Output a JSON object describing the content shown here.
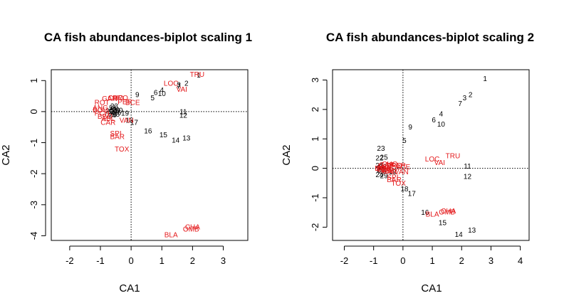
{
  "chart_data": [
    {
      "type": "scatter",
      "title": "CA fish abundances-biplot scaling 1",
      "xlabel": "CA1",
      "ylabel": "CA2",
      "xlim": [
        -2.6,
        3.8
      ],
      "ylim": [
        -4.15,
        1.35
      ],
      "xticks": [
        -2,
        -1,
        0,
        1,
        2,
        3
      ],
      "yticks": [
        -4,
        -3,
        -2,
        -1,
        0,
        1
      ],
      "reference_lines": {
        "x": 0,
        "y": 0
      },
      "series": [
        {
          "name": "sites",
          "color": "#000000",
          "points": [
            {
              "label": "1",
              "x": 2.2,
              "y": 1.18
            },
            {
              "label": "2",
              "x": 1.8,
              "y": 0.92
            },
            {
              "label": "3",
              "x": 1.55,
              "y": 0.87
            },
            {
              "label": "4",
              "x": 1.0,
              "y": 0.7
            },
            {
              "label": "5",
              "x": 0.7,
              "y": 0.45
            },
            {
              "label": "6",
              "x": 0.8,
              "y": 0.62
            },
            {
              "label": "7",
              "x": 1.55,
              "y": 0.82
            },
            {
              "label": "9",
              "x": 0.2,
              "y": 0.55
            },
            {
              "label": "10",
              "x": 1.0,
              "y": 0.58
            },
            {
              "label": "11",
              "x": 1.7,
              "y": 0.0
            },
            {
              "label": "12",
              "x": 1.7,
              "y": -0.12
            },
            {
              "label": "13",
              "x": 1.8,
              "y": -0.85
            },
            {
              "label": "14",
              "x": 1.45,
              "y": -0.92
            },
            {
              "label": "15",
              "x": 1.05,
              "y": -0.75
            },
            {
              "label": "16",
              "x": 0.55,
              "y": -0.62
            },
            {
              "label": "17",
              "x": 0.1,
              "y": -0.35
            },
            {
              "label": "18",
              "x": -0.05,
              "y": -0.28
            },
            {
              "label": "19",
              "x": -0.2,
              "y": -0.05
            },
            {
              "label": "20",
              "x": -0.5,
              "y": 0.05
            },
            {
              "label": "21",
              "x": -0.6,
              "y": 0.12
            },
            {
              "label": "22",
              "x": -0.7,
              "y": 0.02
            },
            {
              "label": "23",
              "x": -0.55,
              "y": 0.18
            },
            {
              "label": "24",
              "x": -0.65,
              "y": -0.05
            },
            {
              "label": "25",
              "x": -0.6,
              "y": 0.08
            },
            {
              "label": "26",
              "x": -0.45,
              "y": -0.02
            },
            {
              "label": "27",
              "x": -0.55,
              "y": 0.0
            },
            {
              "label": "28",
              "x": -0.5,
              "y": -0.08
            },
            {
              "label": "29",
              "x": -0.6,
              "y": -0.1
            },
            {
              "label": "30",
              "x": -0.4,
              "y": 0.04
            }
          ]
        },
        {
          "name": "species",
          "color": "#e41a1c",
          "points": [
            {
              "label": "TRU",
              "x": 2.15,
              "y": 1.2
            },
            {
              "label": "LOC",
              "x": 1.3,
              "y": 0.92
            },
            {
              "label": "VAI",
              "x": 1.65,
              "y": 0.72
            },
            {
              "label": "CHO",
              "x": -0.5,
              "y": 0.45
            },
            {
              "label": "BRO",
              "x": -0.35,
              "y": 0.45
            },
            {
              "label": "GAR",
              "x": -0.7,
              "y": 0.42
            },
            {
              "label": "PER",
              "x": -0.2,
              "y": 0.32
            },
            {
              "label": "BCE",
              "x": 0.05,
              "y": 0.3
            },
            {
              "label": "ROT",
              "x": -0.95,
              "y": 0.3
            },
            {
              "label": "BOU",
              "x": -1.0,
              "y": 0.05
            },
            {
              "label": "PCH",
              "x": -0.95,
              "y": -0.05
            },
            {
              "label": "BBO",
              "x": -0.85,
              "y": -0.15
            },
            {
              "label": "ABL",
              "x": -0.75,
              "y": -0.22
            },
            {
              "label": "ANG",
              "x": -1.0,
              "y": 0.12
            },
            {
              "label": "CAR",
              "x": -0.75,
              "y": -0.35
            },
            {
              "label": "VAN",
              "x": -0.15,
              "y": -0.28
            },
            {
              "label": "SPI",
              "x": -0.5,
              "y": -0.7
            },
            {
              "label": "BAR",
              "x": -0.45,
              "y": -0.8
            },
            {
              "label": "TOX",
              "x": -0.3,
              "y": -1.2
            },
            {
              "label": "CHA",
              "x": 2.0,
              "y": -3.72
            },
            {
              "label": "OMB",
              "x": 1.95,
              "y": -3.78
            },
            {
              "label": "BLA",
              "x": 1.3,
              "y": -3.97
            }
          ]
        }
      ]
    },
    {
      "type": "scatter",
      "title": "CA fish abundances-biplot scaling 2",
      "xlabel": "CA1",
      "ylabel": "CA2",
      "xlim": [
        -2.4,
        4.3
      ],
      "ylim": [
        -2.45,
        3.35
      ],
      "xticks": [
        -2,
        -1,
        0,
        1,
        2,
        3,
        4
      ],
      "yticks": [
        -2,
        -1,
        0,
        1,
        2,
        3
      ],
      "reference_lines": {
        "x": 0,
        "y": 0
      },
      "series": [
        {
          "name": "sites",
          "color": "#000000",
          "points": [
            {
              "label": "1",
              "x": 2.8,
              "y": 3.05
            },
            {
              "label": "2",
              "x": 2.3,
              "y": 2.5
            },
            {
              "label": "3",
              "x": 2.1,
              "y": 2.4
            },
            {
              "label": "4",
              "x": 1.3,
              "y": 1.85
            },
            {
              "label": "5",
              "x": 0.05,
              "y": 0.95
            },
            {
              "label": "6",
              "x": 1.05,
              "y": 1.65
            },
            {
              "label": "7",
              "x": 1.95,
              "y": 2.2
            },
            {
              "label": "9",
              "x": 0.25,
              "y": 1.4
            },
            {
              "label": "10",
              "x": 1.3,
              "y": 1.5
            },
            {
              "label": "11",
              "x": 2.2,
              "y": 0.08
            },
            {
              "label": "12",
              "x": 2.2,
              "y": -0.28
            },
            {
              "label": "13",
              "x": 2.35,
              "y": -2.1
            },
            {
              "label": "14",
              "x": 1.9,
              "y": -2.25
            },
            {
              "label": "15",
              "x": 1.35,
              "y": -1.85
            },
            {
              "label": "16",
              "x": 0.75,
              "y": -1.5
            },
            {
              "label": "17",
              "x": 0.3,
              "y": -0.85
            },
            {
              "label": "18",
              "x": 0.05,
              "y": -0.7
            },
            {
              "label": "19",
              "x": -0.35,
              "y": -0.12
            },
            {
              "label": "20",
              "x": -0.75,
              "y": 0.02
            },
            {
              "label": "21",
              "x": -0.75,
              "y": -0.05
            },
            {
              "label": "22",
              "x": -0.8,
              "y": 0.35
            },
            {
              "label": "23",
              "x": -0.75,
              "y": 0.68
            },
            {
              "label": "24",
              "x": -0.8,
              "y": -0.22
            },
            {
              "label": "25",
              "x": -0.65,
              "y": 0.38
            },
            {
              "label": "26",
              "x": -0.7,
              "y": -0.08
            },
            {
              "label": "27",
              "x": -0.8,
              "y": 0.1
            },
            {
              "label": "28",
              "x": -0.7,
              "y": 0.05
            },
            {
              "label": "29",
              "x": -0.65,
              "y": -0.25
            },
            {
              "label": "30",
              "x": -0.75,
              "y": 0.0
            }
          ]
        },
        {
          "name": "species",
          "color": "#e41a1c",
          "points": [
            {
              "label": "TRU",
              "x": 1.7,
              "y": 0.42
            },
            {
              "label": "LOC",
              "x": 1.0,
              "y": 0.32
            },
            {
              "label": "VAI",
              "x": 1.25,
              "y": 0.2
            },
            {
              "label": "CHO",
              "x": -0.45,
              "y": 0.15
            },
            {
              "label": "BRO",
              "x": -0.3,
              "y": 0.1
            },
            {
              "label": "GAR",
              "x": -0.55,
              "y": 0.12
            },
            {
              "label": "PER",
              "x": -0.15,
              "y": 0.1
            },
            {
              "label": "BCE",
              "x": 0.0,
              "y": 0.05
            },
            {
              "label": "ROT",
              "x": -0.6,
              "y": 0.08
            },
            {
              "label": "BOU",
              "x": -0.7,
              "y": 0.0
            },
            {
              "label": "PCH",
              "x": -0.65,
              "y": -0.02
            },
            {
              "label": "BBO",
              "x": -0.6,
              "y": -0.05
            },
            {
              "label": "ABL",
              "x": -0.5,
              "y": -0.08
            },
            {
              "label": "ANG",
              "x": -0.55,
              "y": 0.0
            },
            {
              "label": "CAR",
              "x": -0.45,
              "y": -0.1
            },
            {
              "label": "VAN",
              "x": -0.05,
              "y": -0.12
            },
            {
              "label": "SPI",
              "x": -0.35,
              "y": -0.3
            },
            {
              "label": "BAR",
              "x": -0.3,
              "y": -0.38
            },
            {
              "label": "TOX",
              "x": -0.15,
              "y": -0.5
            },
            {
              "label": "CHA",
              "x": 1.55,
              "y": -1.45
            },
            {
              "label": "OMB",
              "x": 1.5,
              "y": -1.48
            },
            {
              "label": "BLA",
              "x": 1.0,
              "y": -1.55
            }
          ]
        }
      ]
    }
  ]
}
